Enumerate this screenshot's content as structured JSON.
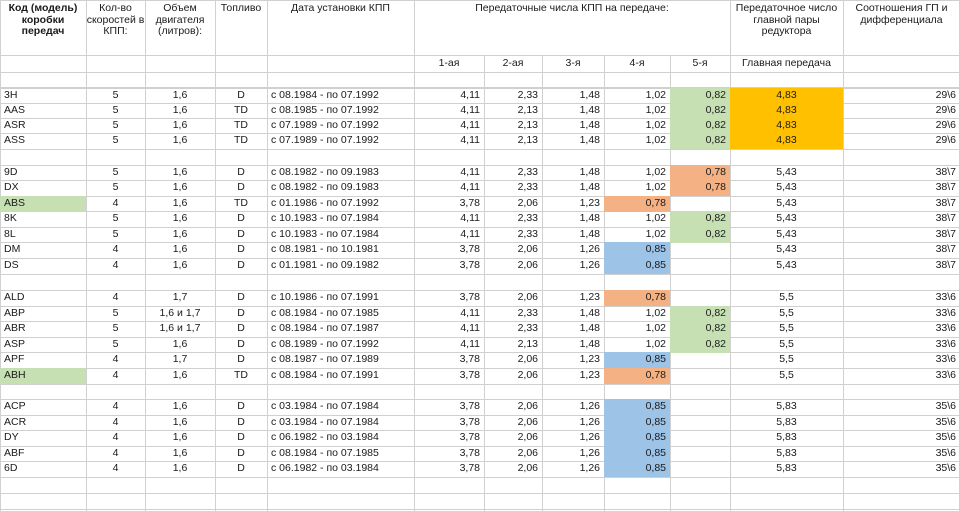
{
  "headers": {
    "code": "Код (модель) коробки передач",
    "gears_count": "Кол-во скоростей в КПП:",
    "volume": "Объем двигателя (литров):",
    "fuel": "Топливо",
    "dates": "Дата установки КПП",
    "ratios": "Передаточные числа КПП на передаче:",
    "main_pair": "Передаточное число главной пары редуктора",
    "diff": "Соотношения ГП и дифференциала",
    "g1": "1-ая",
    "g2": "2-ая",
    "g3": "3-я",
    "g4": "4-я",
    "g5": "5-я",
    "main_gear": "Главная передача"
  },
  "colors": {
    "green": "#c6e0b4",
    "orange": "#f4b183",
    "blue": "#9dc3e6",
    "gold": "#ffc000",
    "grid": "#d0d0d0"
  },
  "rows": [
    {
      "code": "3H",
      "gears": "5",
      "vol": "1,6",
      "fuel": "D",
      "date": "с 08.1984 - по 07.1992",
      "g1": "4,11",
      "g2": "2,33",
      "g3": "1,48",
      "g4": "1,02",
      "g5": "0,82",
      "main": "4,83",
      "diff": "29\\6",
      "c_g5": "green",
      "c_main": "gold"
    },
    {
      "code": "AAS",
      "gears": "5",
      "vol": "1,6",
      "fuel": "TD",
      "date": "с 08.1985 - по 07.1992",
      "g1": "4,11",
      "g2": "2,13",
      "g3": "1,48",
      "g4": "1,02",
      "g5": "0,82",
      "main": "4,83",
      "diff": "29\\6",
      "c_g5": "green",
      "c_main": "gold"
    },
    {
      "code": "ASR",
      "gears": "5",
      "vol": "1,6",
      "fuel": "TD",
      "date": "с 07.1989 - по 07.1992",
      "g1": "4,11",
      "g2": "2,13",
      "g3": "1,48",
      "g4": "1,02",
      "g5": "0,82",
      "main": "4,83",
      "diff": "29\\6",
      "c_g5": "green",
      "c_main": "gold"
    },
    {
      "code": "ASS",
      "gears": "5",
      "vol": "1,6",
      "fuel": "TD",
      "date": "с 07.1989 - по 07.1992",
      "g1": "4,11",
      "g2": "2,13",
      "g3": "1,48",
      "g4": "1,02",
      "g5": "0,82",
      "main": "4,83",
      "diff": "29\\6",
      "c_g5": "green",
      "c_main": "gold"
    },
    {
      "code": "9D",
      "gears": "5",
      "vol": "1,6",
      "fuel": "D",
      "date": "с 08.1982 - по 09.1983",
      "g1": "4,11",
      "g2": "2,33",
      "g3": "1,48",
      "g4": "1,02",
      "g5": "0,78",
      "main": "5,43",
      "diff": "38\\7",
      "c_g5": "orange"
    },
    {
      "code": "DX",
      "gears": "5",
      "vol": "1,6",
      "fuel": "D",
      "date": "с 08.1982 - по 09.1983",
      "g1": "4,11",
      "g2": "2,33",
      "g3": "1,48",
      "g4": "1,02",
      "g5": "0,78",
      "main": "5,43",
      "diff": "38\\7",
      "c_g5": "orange"
    },
    {
      "code": "ABS",
      "gears": "4",
      "vol": "1,6",
      "fuel": "TD",
      "date": "с 01.1986 - по 07.1992",
      "g1": "3,78",
      "g2": "2,06",
      "g3": "1,23",
      "g4": "0,78",
      "g5": "",
      "main": "5,43",
      "diff": "38\\7",
      "c_code": "green",
      "c_g4": "orange"
    },
    {
      "code": "8K",
      "gears": "5",
      "vol": "1,6",
      "fuel": "D",
      "date": "с 10.1983 - по 07.1984",
      "g1": "4,11",
      "g2": "2,33",
      "g3": "1,48",
      "g4": "1,02",
      "g5": "0,82",
      "main": "5,43",
      "diff": "38\\7",
      "c_g5": "green"
    },
    {
      "code": "8L",
      "gears": "5",
      "vol": "1,6",
      "fuel": "D",
      "date": "с 10.1983 - по 07.1984",
      "g1": "4,11",
      "g2": "2,33",
      "g3": "1,48",
      "g4": "1,02",
      "g5": "0,82",
      "main": "5,43",
      "diff": "38\\7",
      "c_g5": "green"
    },
    {
      "code": "DM",
      "gears": "4",
      "vol": "1,6",
      "fuel": "D",
      "date": "с 08.1981 - по 10.1981",
      "g1": "3,78",
      "g2": "2,06",
      "g3": "1,26",
      "g4": "0,85",
      "g5": "",
      "main": "5,43",
      "diff": "38\\7",
      "c_g4": "blue"
    },
    {
      "code": "DS",
      "gears": "4",
      "vol": "1,6",
      "fuel": "D",
      "date": "с 01.1981 - по 09.1982",
      "g1": "3,78",
      "g2": "2,06",
      "g3": "1,26",
      "g4": "0,85",
      "g5": "",
      "main": "5,43",
      "diff": "38\\7",
      "c_g4": "blue"
    },
    {
      "code": "ALD",
      "gears": "4",
      "vol": "1,7",
      "fuel": "D",
      "date": "с 10.1986 - по 07.1991",
      "g1": "3,78",
      "g2": "2,06",
      "g3": "1,23",
      "g4": "0,78",
      "g5": "",
      "main": "5,5",
      "diff": "33\\6",
      "c_g4": "orange"
    },
    {
      "code": "ABP",
      "gears": "5",
      "vol": "1,6 и 1,7",
      "fuel": "D",
      "date": "с 08.1984 - по 07.1985",
      "g1": "4,11",
      "g2": "2,33",
      "g3": "1,48",
      "g4": "1,02",
      "g5": "0,82",
      "main": "5,5",
      "diff": "33\\6",
      "c_g5": "green"
    },
    {
      "code": "ABR",
      "gears": "5",
      "vol": "1,6 и 1,7",
      "fuel": "D",
      "date": "с 08.1984 - по 07.1987",
      "g1": "4,11",
      "g2": "2,33",
      "g3": "1,48",
      "g4": "1,02",
      "g5": "0,82",
      "main": "5,5",
      "diff": "33\\6",
      "c_g5": "green"
    },
    {
      "code": "ASP",
      "gears": "5",
      "vol": "1,6",
      "fuel": "D",
      "date": "с 08.1989 - по 07.1992",
      "g1": "4,11",
      "g2": "2,13",
      "g3": "1,48",
      "g4": "1,02",
      "g5": "0,82",
      "main": "5,5",
      "diff": "33\\6",
      "c_g5": "green"
    },
    {
      "code": "APF",
      "gears": "4",
      "vol": "1,7",
      "fuel": "D",
      "date": "с 08.1987 - по 07.1989",
      "g1": "3,78",
      "g2": "2,06",
      "g3": "1,23",
      "g4": "0,85",
      "g5": "",
      "main": "5,5",
      "diff": "33\\6",
      "c_g4": "blue"
    },
    {
      "code": "ABH",
      "gears": "4",
      "vol": "1,6",
      "fuel": "TD",
      "date": "с 08.1984 - по 07.1991",
      "g1": "3,78",
      "g2": "2,06",
      "g3": "1,23",
      "g4": "0,78",
      "g5": "",
      "main": "5,5",
      "diff": "33\\6",
      "c_code": "green",
      "c_g4": "orange"
    },
    {
      "code": "ACP",
      "gears": "4",
      "vol": "1,6",
      "fuel": "D",
      "date": "с 03.1984 - по 07.1984",
      "g1": "3,78",
      "g2": "2,06",
      "g3": "1,26",
      "g4": "0,85",
      "g5": "",
      "main": "5,83",
      "diff": "35\\6",
      "c_g4": "blue"
    },
    {
      "code": "ACR",
      "gears": "4",
      "vol": "1,6",
      "fuel": "D",
      "date": "с 03.1984 - по 07.1984",
      "g1": "3,78",
      "g2": "2,06",
      "g3": "1,26",
      "g4": "0,85",
      "g5": "",
      "main": "5,83",
      "diff": "35\\6",
      "c_g4": "blue"
    },
    {
      "code": "DY",
      "gears": "4",
      "vol": "1,6",
      "fuel": "D",
      "date": "с 06.1982 - по 03.1984",
      "g1": "3,78",
      "g2": "2,06",
      "g3": "1,26",
      "g4": "0,85",
      "g5": "",
      "main": "5,83",
      "diff": "35\\6",
      "c_g4": "blue"
    },
    {
      "code": "ABF",
      "gears": "4",
      "vol": "1,6",
      "fuel": "D",
      "date": "с 08.1984 - по 07.1985",
      "g1": "3,78",
      "g2": "2,06",
      "g3": "1,26",
      "g4": "0,85",
      "g5": "",
      "main": "5,83",
      "diff": "35\\6",
      "c_g4": "blue"
    },
    {
      "code": "6D",
      "gears": "4",
      "vol": "1,6",
      "fuel": "D",
      "date": "с 06.1982 - по 03.1984",
      "g1": "3,78",
      "g2": "2,06",
      "g3": "1,26",
      "g4": "0,85",
      "g5": "",
      "main": "5,83",
      "diff": "35\\6",
      "c_g4": "blue"
    }
  ]
}
